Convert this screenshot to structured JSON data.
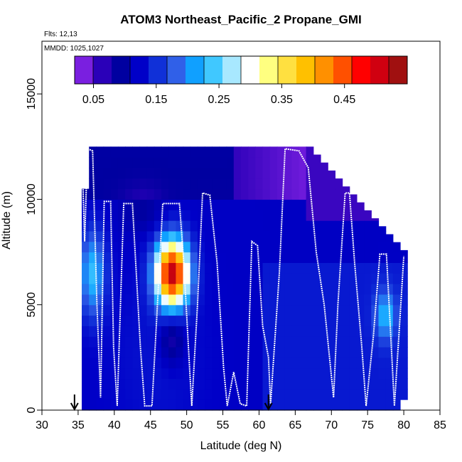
{
  "chart_data": {
    "type": "heatmap",
    "title": "ATOM3 Northeast_Pacific_2 Propane_GMI",
    "flights_label": "Flts: 12,13",
    "dates_label": "MMDD: 1025,1027",
    "xlabel": "Latitude (deg N)",
    "ylabel": "Altitude (m)",
    "xlim": [
      30,
      85
    ],
    "ylim": [
      0,
      17500
    ],
    "x_ticks": [
      30,
      35,
      40,
      45,
      50,
      55,
      60,
      65,
      70,
      75,
      80,
      85
    ],
    "y_ticks": [
      0,
      5000,
      10000,
      15000
    ],
    "colorbar": {
      "range": [
        0.02,
        0.55
      ],
      "ticks": [
        0.05,
        0.15,
        0.25,
        0.35,
        0.45
      ],
      "colors": [
        "#7a1fe0",
        "#2a00b8",
        "#0000a0",
        "#0000c8",
        "#1030d8",
        "#3060e8",
        "#10a0ff",
        "#40c8ff",
        "#a8e8ff",
        "#ffffff",
        "#ffff80",
        "#ffe040",
        "#ffc000",
        "#ff9000",
        "#ff5000",
        "#ff0000",
        "#d00010",
        "#a01010"
      ]
    },
    "grid": false,
    "legend_position": "top",
    "arrows_lat": [
      34.5,
      61.3
    ],
    "hotspot": {
      "lat": 48,
      "alt": 6500,
      "value": 0.52
    },
    "flight_track": [
      [
        35.5,
        12500
      ],
      [
        35.9,
        8000
      ],
      [
        36.3,
        12400
      ],
      [
        37.0,
        12300
      ],
      [
        37.6,
        5000
      ],
      [
        38.1,
        600
      ],
      [
        38.6,
        9900
      ],
      [
        39.5,
        9900
      ],
      [
        39.9,
        3000
      ],
      [
        40.4,
        200
      ],
      [
        41.3,
        9800
      ],
      [
        42.5,
        9800
      ],
      [
        43.6,
        3000
      ],
      [
        44.2,
        200
      ],
      [
        45.2,
        200
      ],
      [
        45.8,
        4000
      ],
      [
        46.7,
        9800
      ],
      [
        49.0,
        9800
      ],
      [
        49.6,
        7000
      ],
      [
        50.4,
        2000
      ],
      [
        50.7,
        200
      ],
      [
        51.5,
        5000
      ],
      [
        52.2,
        10300
      ],
      [
        53.2,
        10200
      ],
      [
        54.2,
        7000
      ],
      [
        55.1,
        2000
      ],
      [
        55.6,
        200
      ],
      [
        56.5,
        1800
      ],
      [
        57.4,
        300
      ],
      [
        58.3,
        200
      ],
      [
        59.0,
        8000
      ],
      [
        59.8,
        7800
      ],
      [
        60.5,
        4000
      ],
      [
        61.3,
        2500
      ],
      [
        61.6,
        300
      ],
      [
        62.8,
        6500
      ],
      [
        63.6,
        12400
      ],
      [
        65.5,
        12300
      ],
      [
        66.8,
        11500
      ],
      [
        67.9,
        7500
      ],
      [
        69.0,
        5000
      ],
      [
        70.3,
        600
      ],
      [
        70.9,
        5000
      ],
      [
        71.9,
        10300
      ],
      [
        72.5,
        10300
      ],
      [
        73.2,
        7000
      ],
      [
        74.2,
        3000
      ],
      [
        74.8,
        200
      ],
      [
        75.8,
        3500
      ],
      [
        76.7,
        7400
      ],
      [
        77.6,
        7400
      ],
      [
        78.2,
        3500
      ],
      [
        78.7,
        200
      ],
      [
        79.5,
        4500
      ],
      [
        80.0,
        7300
      ]
    ]
  }
}
